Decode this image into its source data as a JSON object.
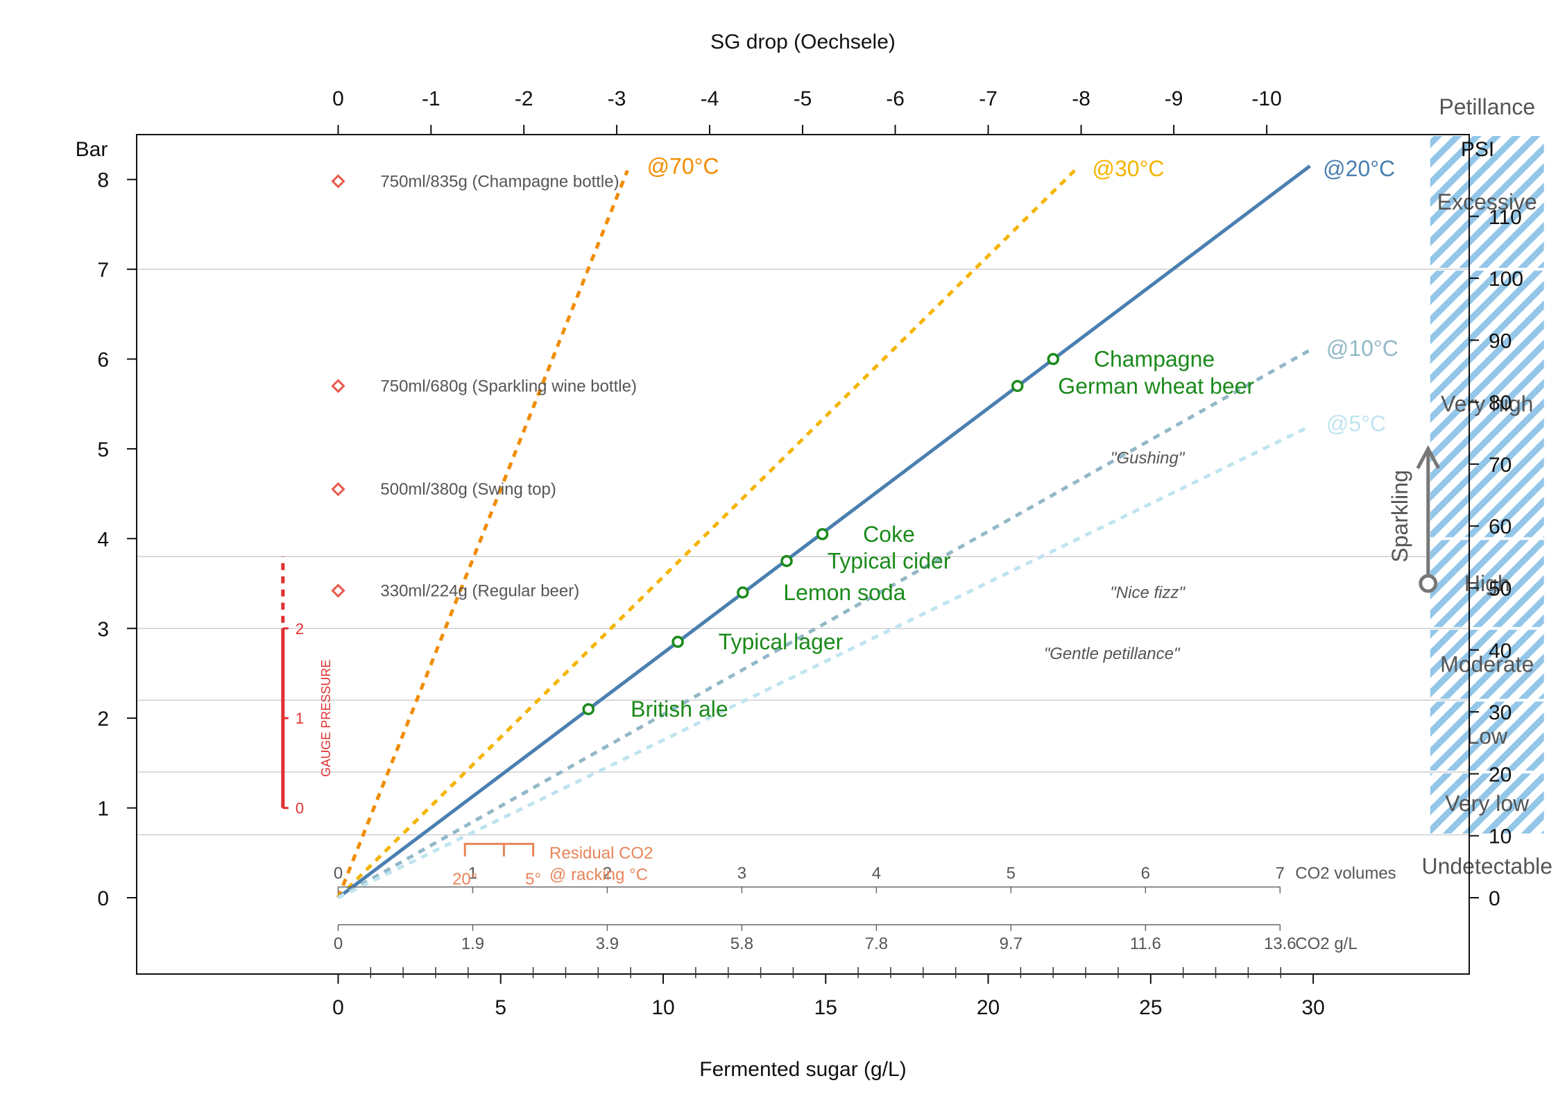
{
  "chart_data": {
    "type": "line",
    "xlabel": "Fermented sugar (g/L)",
    "x_top_label": "SG drop (Oechsele)",
    "ylabel_left": "Bar",
    "ylabel_right": "PSI",
    "xlim": [
      -6.2,
      34.8
    ],
    "ylim": [
      -0.85,
      8.5
    ],
    "x_ticks": [
      0,
      5,
      10,
      15,
      20,
      25,
      30
    ],
    "x_minor_ticks": [
      1,
      2,
      3,
      4,
      6,
      7,
      8,
      9,
      11,
      12,
      13,
      14,
      16,
      17,
      18,
      19,
      21,
      22,
      23,
      24,
      26,
      27,
      28,
      29
    ],
    "y_ticks": [
      0,
      1,
      2,
      3,
      4,
      5,
      6,
      7,
      8
    ],
    "top_ticks": [
      {
        "x": 0,
        "label": "0"
      },
      {
        "x": 2.857,
        "label": "-1"
      },
      {
        "x": 5.714,
        "label": "-2"
      },
      {
        "x": 8.571,
        "label": "-3"
      },
      {
        "x": 11.43,
        "label": "-4"
      },
      {
        "x": 14.29,
        "label": "-5"
      },
      {
        "x": 17.14,
        "label": "-6"
      },
      {
        "x": 20.0,
        "label": "-7"
      },
      {
        "x": 22.86,
        "label": "-8"
      },
      {
        "x": 25.71,
        "label": "-9"
      },
      {
        "x": 28.57,
        "label": "-10"
      }
    ],
    "psi_ticks": [
      {
        "y": 0,
        "label": "0"
      },
      {
        "y": 0.69,
        "label": "10"
      },
      {
        "y": 1.38,
        "label": "20"
      },
      {
        "y": 2.07,
        "label": "30"
      },
      {
        "y": 2.76,
        "label": "40"
      },
      {
        "y": 3.45,
        "label": "50"
      },
      {
        "y": 4.14,
        "label": "60"
      },
      {
        "y": 4.83,
        "label": "70"
      },
      {
        "y": 5.52,
        "label": "80"
      },
      {
        "y": 6.21,
        "label": "90"
      },
      {
        "y": 6.9,
        "label": "100"
      },
      {
        "y": 7.59,
        "label": "110"
      }
    ],
    "hgrid": [
      0.7,
      1.4,
      2.2,
      3.0,
      3.8,
      7.0
    ],
    "series": [
      {
        "name": "@70°C",
        "color": "#f08c00",
        "dashed": true,
        "x": [
          0,
          8.9
        ],
        "y": [
          0,
          8.1
        ],
        "label_x": 9.5,
        "label_y": 8.15
      },
      {
        "name": "@30°C",
        "color": "#f5b400",
        "dashed": true,
        "x": [
          0,
          22.8
        ],
        "y": [
          0,
          8.15
        ],
        "label_x": 23.2,
        "label_y": 8.12
      },
      {
        "name": "@20°C",
        "color": "#4a7fb0",
        "dashed": false,
        "x": [
          0,
          29.9
        ],
        "y": [
          0,
          8.15
        ],
        "label_x": 30.3,
        "label_y": 8.12
      },
      {
        "name": "@10°C",
        "color": "#93b8c8",
        "dashed": true,
        "x": [
          0,
          29.9
        ],
        "y": [
          0,
          6.1
        ],
        "label_x": 30.4,
        "label_y": 6.12
      },
      {
        "name": "@5°C",
        "color": "#bfe4f0",
        "dashed": true,
        "x": [
          0,
          29.9
        ],
        "y": [
          0,
          5.25
        ],
        "label_x": 30.4,
        "label_y": 5.28
      }
    ],
    "drinks": [
      {
        "label": "British ale",
        "x": 7.7,
        "y": 2.1,
        "lx": 9.0,
        "ly": 2.1
      },
      {
        "label": "Typical lager",
        "x": 10.45,
        "y": 2.85,
        "lx": 11.7,
        "ly": 2.85
      },
      {
        "label": "Lemon soda",
        "x": 12.45,
        "y": 3.4,
        "lx": 13.7,
        "ly": 3.4
      },
      {
        "label": "Typical cider",
        "x": 13.8,
        "y": 3.75,
        "lx": 15.05,
        "ly": 3.75
      },
      {
        "label": "Coke",
        "x": 14.9,
        "y": 4.05,
        "lx": 16.15,
        "ly": 4.05
      },
      {
        "label": "German wheat beer",
        "x": 20.9,
        "y": 5.7,
        "lx": 22.15,
        "ly": 5.7
      },
      {
        "label": "Champagne",
        "x": 22.0,
        "y": 6.0,
        "lx": 23.25,
        "ly": 6.0
      }
    ],
    "bottles": [
      {
        "label": "750ml/835g (Champagne bottle)",
        "y": 7.98
      },
      {
        "label": "750ml/680g (Sparkling wine bottle)",
        "y": 5.7
      },
      {
        "label": "500ml/380g (Swing top)",
        "y": 4.55
      },
      {
        "label": "330ml/224g (Regular beer)",
        "y": 3.42
      }
    ],
    "fizz_annotations": [
      {
        "label": "\"Gushing\"",
        "x": 24.9,
        "y": 4.9
      },
      {
        "label": "\"Nice fizz\"",
        "x": 24.9,
        "y": 3.4
      },
      {
        "label": "\"Gentle petillance\"",
        "x": 23.8,
        "y": 2.72
      }
    ],
    "petillance": {
      "title": "Petillance",
      "direction_label": "Sparkling",
      "x_left": 33.6,
      "x_right": 37.1,
      "levels": [
        {
          "label": "Undetectable",
          "y0": 0,
          "y1": 0.7,
          "hatched": false
        },
        {
          "label": "Very low",
          "y0": 0.7,
          "y1": 1.4,
          "hatched": true
        },
        {
          "label": "Low",
          "y0": 1.4,
          "y1": 2.2,
          "hatched": true
        },
        {
          "label": "Moderate",
          "y0": 2.2,
          "y1": 3.0,
          "hatched": true
        },
        {
          "label": "High",
          "y0": 3.0,
          "y1": 4.0,
          "hatched": true
        },
        {
          "label": "Very high",
          "y0": 4.0,
          "y1": 7.0,
          "hatched": true
        },
        {
          "label": "Excessive",
          "y0": 7.0,
          "y1": 8.5,
          "hatched": true
        }
      ]
    },
    "co2_volumes": {
      "title": "CO2 volumes",
      "y": 0.12,
      "ticks": [
        {
          "x": 0,
          "label": "0"
        },
        {
          "x": 4.14,
          "label": "1"
        },
        {
          "x": 8.28,
          "label": "2"
        },
        {
          "x": 12.42,
          "label": "3"
        },
        {
          "x": 16.56,
          "label": "4"
        },
        {
          "x": 20.7,
          "label": "5"
        },
        {
          "x": 24.84,
          "label": "6"
        },
        {
          "x": 28.98,
          "label": "7"
        }
      ]
    },
    "co2_gl": {
      "title": "CO2 g/L",
      "y": -0.3,
      "ticks": [
        {
          "x": 0,
          "label": "0"
        },
        {
          "x": 4.14,
          "label": "1.9"
        },
        {
          "x": 8.28,
          "label": "3.9"
        },
        {
          "x": 12.42,
          "label": "5.8"
        },
        {
          "x": 16.56,
          "label": "7.8"
        },
        {
          "x": 20.7,
          "label": "9.7"
        },
        {
          "x": 24.84,
          "label": "11.6"
        },
        {
          "x": 28.98,
          "label": "13.6"
        }
      ]
    },
    "residual_co2": {
      "title": "Residual CO2",
      "subtitle": "@ racking °C",
      "label_20": "20°",
      "label_5": "5°",
      "x_20": 3.9,
      "x_mid": 5.1,
      "x_5": 6.0
    },
    "gauge": {
      "title": "GAUGE PRESSURE",
      "x": -1.7,
      "bar_min": 1.0,
      "bar_max": 3.0,
      "dash_top": 3.8,
      "ticks": [
        {
          "y": 1.0,
          "label": "0"
        },
        {
          "y": 2.0,
          "label": "1"
        },
        {
          "y": 3.0,
          "label": "2"
        }
      ]
    },
    "colors": {
      "drink": "#1a8a1a",
      "bottle_marker": "#e85a4a",
      "gauge": "#e03030",
      "residual": "#e8855a",
      "hatch": "#93c6e8",
      "grid": "#cfcfcf",
      "arrow": "#777777"
    }
  }
}
